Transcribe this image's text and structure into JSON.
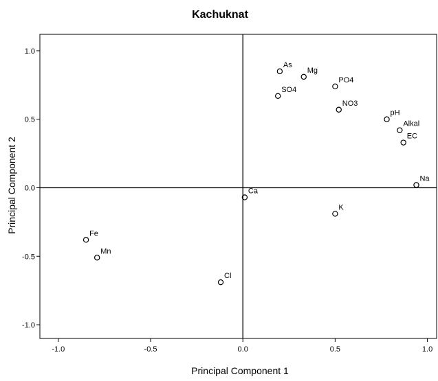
{
  "chart_data": {
    "type": "scatter",
    "title": "Kachuknat",
    "xlabel": "Principal Component 1",
    "ylabel": "Principal Component 2",
    "xlim": [
      -1.1,
      1.05
    ],
    "ylim": [
      -1.1,
      1.12
    ],
    "x_ticks": [
      "-1.0",
      "-0.5",
      "0.0",
      "0.5",
      "1.0"
    ],
    "y_ticks": [
      "1.0",
      "0.5",
      "0.0",
      "-0.5",
      "-1.0"
    ],
    "reference_lines": {
      "x": 0,
      "y": 0
    },
    "grid": false,
    "legend": "none",
    "points": [
      {
        "label": "As",
        "x": 0.2,
        "y": 0.85
      },
      {
        "label": "Mg",
        "x": 0.33,
        "y": 0.81
      },
      {
        "label": "PO4",
        "x": 0.5,
        "y": 0.74
      },
      {
        "label": "SO4",
        "x": 0.19,
        "y": 0.67
      },
      {
        "label": "NO3",
        "x": 0.52,
        "y": 0.57
      },
      {
        "label": "pH",
        "x": 0.78,
        "y": 0.5
      },
      {
        "label": "Alkal",
        "x": 0.85,
        "y": 0.42
      },
      {
        "label": "EC",
        "x": 0.87,
        "y": 0.33
      },
      {
        "label": "Na",
        "x": 0.94,
        "y": 0.02
      },
      {
        "label": "Ca",
        "x": 0.01,
        "y": -0.07
      },
      {
        "label": "K",
        "x": 0.5,
        "y": -0.19
      },
      {
        "label": "Fe",
        "x": -0.85,
        "y": -0.38
      },
      {
        "label": "Mn",
        "x": -0.79,
        "y": -0.51
      },
      {
        "label": "Cl",
        "x": -0.12,
        "y": -0.69
      }
    ]
  },
  "colors": {
    "marker": "#000000",
    "axis": "#000000",
    "background": "#ffffff"
  }
}
